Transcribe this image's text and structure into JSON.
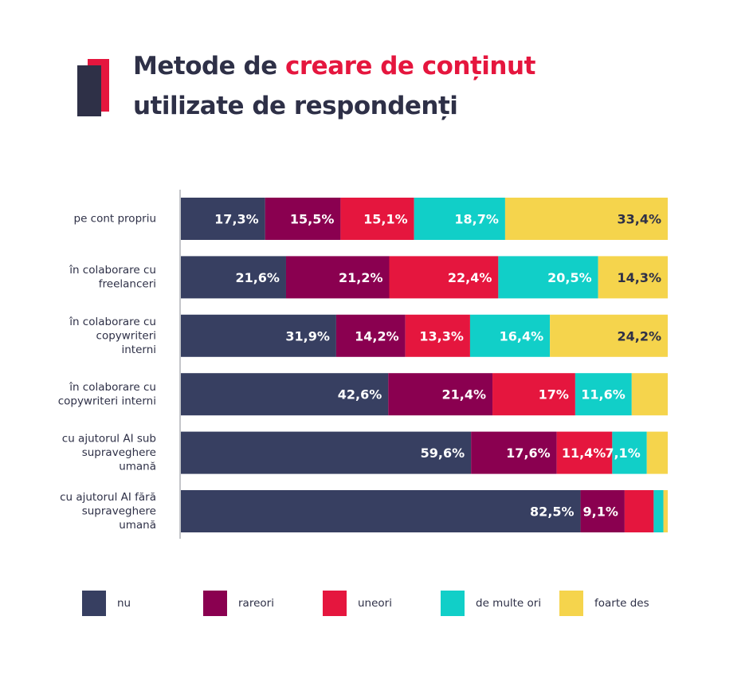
{
  "title": {
    "part1": "Metode de ",
    "highlight": "creare de conținut",
    "line2": "utilizate de respondenți"
  },
  "colors": {
    "nu": "#373f61",
    "rareori": "#8a0050",
    "uneori": "#e5163e",
    "de_multe_ori": "#11cfc8",
    "foarte_des": "#f5d44c",
    "accent": "#e5163e",
    "dark": "#2e3047"
  },
  "chart_data": {
    "type": "bar",
    "orientation": "horizontal",
    "stacked": true,
    "title": "Metode de creare de conținut utilizate de respondenți",
    "categories": [
      [
        "pe cont propriu"
      ],
      [
        "în colaborare cu",
        "freelanceri"
      ],
      [
        "în colaborare cu",
        "copywriteri",
        "interni"
      ],
      [
        "în colaborare cu",
        "copywriteri interni"
      ],
      [
        "cu ajutorul AI sub",
        "supraveghere",
        "umană"
      ],
      [
        "cu ajutorul AI fără",
        "supraveghere",
        "umană"
      ]
    ],
    "series": [
      {
        "name": "nu",
        "color": "#373f61",
        "values": [
          17.3,
          21.6,
          31.9,
          42.6,
          59.6,
          82.5
        ],
        "labels": [
          "17,3%",
          "21,6%",
          "31,9%",
          "42,6%",
          "59,6%",
          "82,5%"
        ]
      },
      {
        "name": "rareori",
        "color": "#8a0050",
        "values": [
          15.5,
          21.2,
          14.2,
          21.4,
          17.6,
          9.1
        ],
        "labels": [
          "15,5%",
          "21,2%",
          "14,2%",
          "21,4%",
          "17,6%",
          "9,1%"
        ]
      },
      {
        "name": "uneori",
        "color": "#e5163e",
        "values": [
          15.1,
          22.4,
          13.3,
          17.0,
          11.4,
          6.0
        ],
        "labels": [
          "15,1%",
          "22,4%",
          "13,3%",
          "17%",
          "11,4%",
          ""
        ]
      },
      {
        "name": "de multe ori",
        "color": "#11cfc8",
        "values": [
          18.7,
          20.5,
          16.4,
          11.6,
          7.1,
          2.0
        ],
        "labels": [
          "18,7%",
          "20,5%",
          "16,4%",
          "11,6%",
          "7,1%",
          ""
        ]
      },
      {
        "name": "foarte des",
        "color": "#f5d44c",
        "values": [
          33.4,
          14.3,
          24.2,
          7.4,
          4.3,
          0.9
        ],
        "labels": [
          "33,4%",
          "14,3%",
          "24,2%",
          "",
          "",
          ""
        ]
      }
    ],
    "xlim": [
      0,
      100
    ],
    "grid": false,
    "legend_position": "bottom"
  }
}
